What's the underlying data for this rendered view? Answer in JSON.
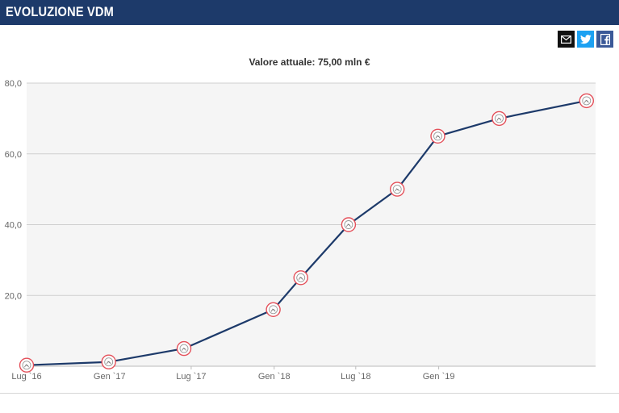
{
  "header": {
    "title": "EVOLUZIONE VDM"
  },
  "share": {
    "mail_icon": "mail-icon",
    "twitter_icon": "twitter-icon",
    "facebook_icon": "facebook-icon"
  },
  "colors": {
    "header_bg": "#1d3a6a",
    "line": "#1d3a6a",
    "marker": "#e4505a"
  },
  "chart_data": {
    "type": "line",
    "title": "Valore attuale: 75,00 mln €",
    "xlabel": "",
    "ylabel": "",
    "ylim": [
      0,
      80
    ],
    "yticks": [
      {
        "value": 20,
        "label": "20,0"
      },
      {
        "value": 40,
        "label": "40,0"
      },
      {
        "value": 60,
        "label": "60,0"
      },
      {
        "value": 80,
        "label": "80,0"
      }
    ],
    "xlim": [
      "2016-07-01",
      "2019-12-15"
    ],
    "xticks": [
      {
        "date": "2016-07-01",
        "label": "Lug `16"
      },
      {
        "date": "2017-01-01",
        "label": "Gen `17"
      },
      {
        "date": "2017-07-01",
        "label": "Lug `17"
      },
      {
        "date": "2018-01-01",
        "label": "Gen `18"
      },
      {
        "date": "2018-07-01",
        "label": "Lug `18"
      },
      {
        "date": "2019-01-01",
        "label": "Gen `19"
      }
    ],
    "grid": true,
    "series": [
      {
        "points": [
          {
            "x": "2016-07-01",
            "y": 0.3
          },
          {
            "x": "2016-12-30",
            "y": 1.2
          },
          {
            "x": "2017-06-15",
            "y": 5.0
          },
          {
            "x": "2017-12-30",
            "y": 16.0
          },
          {
            "x": "2018-03-01",
            "y": 25.0
          },
          {
            "x": "2018-06-15",
            "y": 40.0
          },
          {
            "x": "2018-10-01",
            "y": 50.0
          },
          {
            "x": "2018-12-30",
            "y": 65.0
          },
          {
            "x": "2019-05-15",
            "y": 70.0
          },
          {
            "x": "2019-11-25",
            "y": 75.0
          }
        ]
      }
    ]
  }
}
